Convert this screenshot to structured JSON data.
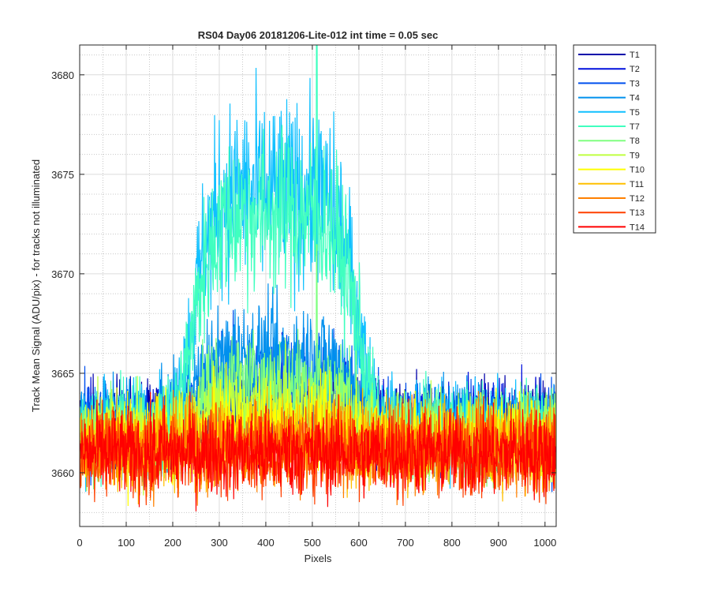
{
  "chart_data": {
    "type": "line",
    "title": "RS04 Day06 20181206-Lite-012 int time = 0.05 sec",
    "xlabel": "Pixels",
    "ylabel": "Track Mean Signal (ADU/pix) - for tracks not illuminated",
    "xlim": [
      0,
      1024
    ],
    "ylim": [
      3657.3,
      3681.5
    ],
    "xticks": [
      0,
      100,
      200,
      300,
      400,
      500,
      600,
      700,
      800,
      900,
      1000
    ],
    "yticks": [
      3660,
      3665,
      3670,
      3675,
      3680
    ],
    "xtick_labels": [
      "0",
      "100",
      "200",
      "300",
      "400",
      "500",
      "600",
      "700",
      "800",
      "900",
      "1000"
    ],
    "ytick_labels": [
      "3660",
      "3665",
      "3670",
      "3675",
      "3680"
    ],
    "grid": true,
    "minor_grid": true,
    "legend_position": "outside-top-right",
    "n_points": 1024,
    "series": [
      {
        "name": "T1",
        "color": "#0000aa",
        "baseline": 3662.5,
        "noise": 1.1,
        "peak": 0.6,
        "spike": 0
      },
      {
        "name": "T2",
        "color": "#0010dd",
        "baseline": 3662.4,
        "noise": 1.1,
        "peak": 1.2,
        "spike": 0
      },
      {
        "name": "T3",
        "color": "#0050ee",
        "baseline": 3662.3,
        "noise": 1.1,
        "peak": 2.4,
        "spike": 0
      },
      {
        "name": "T4",
        "color": "#0090ee",
        "baseline": 3662.4,
        "noise": 1.1,
        "peak": 3.4,
        "spike": 0
      },
      {
        "name": "T5",
        "color": "#10c0ff",
        "baseline": 3662.3,
        "noise": 1.2,
        "peak": 11.8,
        "spike": 0
      },
      {
        "name": "T7",
        "color": "#40ffbf",
        "baseline": 3662.2,
        "noise": 1.1,
        "peak": 10.8,
        "spike": 9
      },
      {
        "name": "T8",
        "color": "#80ff80",
        "baseline": 3661.9,
        "noise": 1.1,
        "peak": 2.6,
        "spike": 3
      },
      {
        "name": "T9",
        "color": "#bfff40",
        "baseline": 3661.8,
        "noise": 1.1,
        "peak": 1.4,
        "spike": 0
      },
      {
        "name": "T10",
        "color": "#ffff00",
        "baseline": 3661.6,
        "noise": 1.1,
        "peak": 0.6,
        "spike": 0
      },
      {
        "name": "T11",
        "color": "#ffbf00",
        "baseline": 3661.4,
        "noise": 1.1,
        "peak": 0.3,
        "spike": 0
      },
      {
        "name": "T12",
        "color": "#ff8000",
        "baseline": 3661.2,
        "noise": 1.1,
        "peak": 0.1,
        "spike": 0
      },
      {
        "name": "T13",
        "color": "#ff4000",
        "baseline": 3661.1,
        "noise": 1.1,
        "peak": 0.0,
        "spike": 0
      },
      {
        "name": "T14",
        "color": "#ff0000",
        "baseline": 3661.0,
        "noise": 1.1,
        "peak": 0.0,
        "spike": 0
      }
    ],
    "peak_center": 420,
    "peak_width": 150
  }
}
